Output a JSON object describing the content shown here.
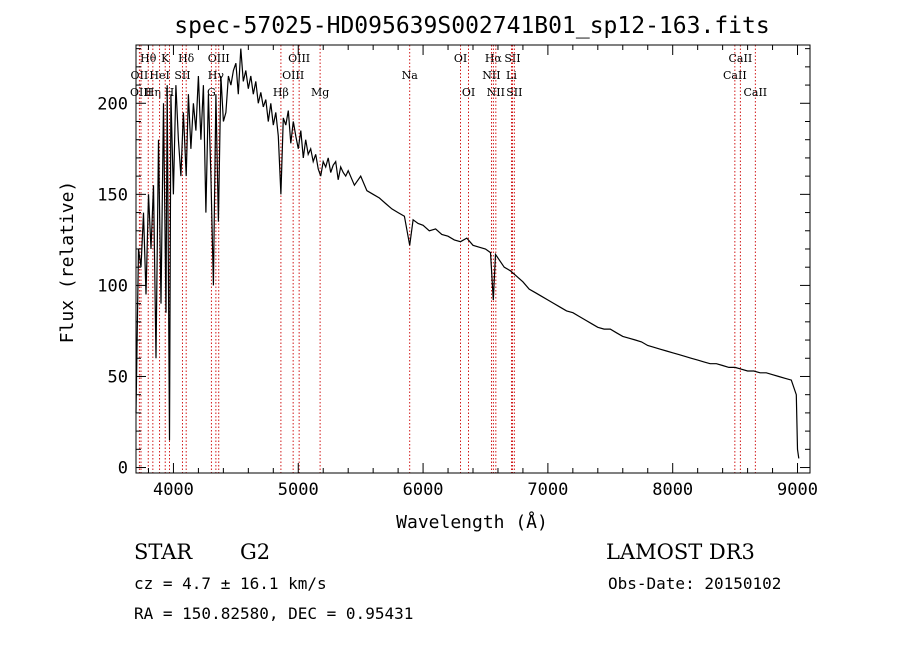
{
  "chart_data": {
    "type": "line",
    "title": "spec-57025-HD095639S002741B01_sp12-163.fits",
    "xlabel": "Wavelength (Å)",
    "ylabel": "Flux (relative)",
    "xlim": [
      3700,
      9100
    ],
    "ylim": [
      -3,
      232
    ],
    "x_ticks": [
      4000,
      5000,
      6000,
      7000,
      8000,
      9000
    ],
    "x_tick_labels": [
      "4000",
      "5000",
      "6000",
      "7000",
      "8000",
      "9000"
    ],
    "y_ticks": [
      0,
      50,
      100,
      150,
      200
    ],
    "y_tick_labels": [
      "0",
      "50",
      "100",
      "150",
      "200"
    ],
    "series": [
      {
        "name": "spectrum",
        "x": [
          3700,
          3720,
          3740,
          3760,
          3780,
          3800,
          3820,
          3840,
          3860,
          3880,
          3900,
          3920,
          3940,
          3950,
          3968,
          3980,
          4000,
          4020,
          4040,
          4060,
          4080,
          4102,
          4120,
          4140,
          4160,
          4180,
          4200,
          4220,
          4240,
          4260,
          4280,
          4300,
          4320,
          4340,
          4360,
          4380,
          4400,
          4420,
          4440,
          4460,
          4480,
          4500,
          4520,
          4540,
          4560,
          4580,
          4600,
          4620,
          4640,
          4660,
          4680,
          4700,
          4720,
          4740,
          4760,
          4780,
          4800,
          4820,
          4840,
          4861,
          4880,
          4900,
          4920,
          4940,
          4960,
          4980,
          5000,
          5020,
          5040,
          5060,
          5080,
          5100,
          5120,
          5140,
          5160,
          5180,
          5200,
          5220,
          5240,
          5260,
          5280,
          5300,
          5320,
          5340,
          5360,
          5380,
          5400,
          5450,
          5500,
          5550,
          5600,
          5650,
          5700,
          5750,
          5800,
          5850,
          5893,
          5920,
          5960,
          6000,
          6050,
          6100,
          6150,
          6200,
          6250,
          6300,
          6350,
          6400,
          6450,
          6500,
          6540,
          6563,
          6580,
          6600,
          6650,
          6700,
          6750,
          6800,
          6850,
          6900,
          6950,
          7000,
          7050,
          7100,
          7150,
          7200,
          7250,
          7300,
          7350,
          7400,
          7450,
          7500,
          7550,
          7600,
          7650,
          7700,
          7750,
          7800,
          7850,
          7900,
          7950,
          8000,
          8050,
          8100,
          8150,
          8200,
          8250,
          8300,
          8350,
          8400,
          8450,
          8500,
          8550,
          8600,
          8650,
          8700,
          8750,
          8800,
          8850,
          8900,
          8950,
          8990,
          9000,
          9010
        ],
        "y": [
          30,
          120,
          110,
          140,
          95,
          150,
          120,
          155,
          60,
          180,
          90,
          200,
          85,
          210,
          15,
          205,
          150,
          210,
          180,
          160,
          195,
          160,
          205,
          175,
          200,
          185,
          215,
          180,
          210,
          140,
          205,
          160,
          100,
          205,
          135,
          215,
          190,
          195,
          215,
          210,
          218,
          222,
          205,
          230,
          212,
          218,
          208,
          215,
          205,
          212,
          200,
          206,
          198,
          202,
          190,
          200,
          188,
          195,
          182,
          150,
          192,
          188,
          196,
          178,
          190,
          182,
          175,
          185,
          170,
          180,
          172,
          175,
          168,
          172,
          164,
          160,
          168,
          165,
          170,
          162,
          166,
          168,
          158,
          165,
          162,
          160,
          163,
          155,
          160,
          152,
          150,
          148,
          145,
          142,
          140,
          138,
          122,
          136,
          134,
          133,
          130,
          131,
          128,
          127,
          125,
          124,
          126,
          122,
          121,
          120,
          118,
          92,
          117,
          115,
          110,
          108,
          105,
          102,
          98,
          96,
          94,
          92,
          90,
          88,
          86,
          85,
          83,
          81,
          79,
          77,
          76,
          76,
          74,
          72,
          71,
          70,
          69,
          67,
          66,
          65,
          64,
          63,
          62,
          61,
          60,
          59,
          58,
          57,
          57,
          56,
          55,
          55,
          54,
          53,
          53,
          52,
          52,
          51,
          50,
          49,
          48,
          40,
          10,
          5
        ]
      }
    ],
    "lines": [
      {
        "label": "Hθ",
        "x": 3798,
        "row": 0
      },
      {
        "label": "OII",
        "x": 3727,
        "row": 1
      },
      {
        "label": "OIII",
        "x": 3740,
        "row": 2
      },
      {
        "label": "Hη",
        "x": 3835,
        "row": 2
      },
      {
        "label": "K",
        "x": 3934,
        "row": 0
      },
      {
        "label": "HeI",
        "x": 3889,
        "row": 1
      },
      {
        "label": "H",
        "x": 3968,
        "row": 2
      },
      {
        "label": "Hδ",
        "x": 4102,
        "row": 0
      },
      {
        "label": "SII",
        "x": 4072,
        "row": 1
      },
      {
        "label": "OIII",
        "x": 4363,
        "row": 0
      },
      {
        "label": "Hγ",
        "x": 4340,
        "row": 1
      },
      {
        "label": "G",
        "x": 4304,
        "row": 2
      },
      {
        "label": "OIII",
        "x": 5007,
        "row": 0
      },
      {
        "label": "OIII",
        "x": 4959,
        "row": 1
      },
      {
        "label": "Hβ",
        "x": 4861,
        "row": 2
      },
      {
        "label": "Mg",
        "x": 5175,
        "row": 2
      },
      {
        "label": "Na",
        "x": 5893,
        "row": 1
      },
      {
        "label": "OI",
        "x": 6300,
        "row": 0
      },
      {
        "label": "OI",
        "x": 6364,
        "row": 2
      },
      {
        "label": "Hα",
        "x": 6563,
        "row": 0
      },
      {
        "label": "NII",
        "x": 6548,
        "row": 1
      },
      {
        "label": "NII",
        "x": 6583,
        "row": 2
      },
      {
        "label": "SII",
        "x": 6716,
        "row": 0
      },
      {
        "label": "Li",
        "x": 6708,
        "row": 1
      },
      {
        "label": "SII",
        "x": 6731,
        "row": 2
      },
      {
        "label": "CaII",
        "x": 8542,
        "row": 0
      },
      {
        "label": "CaII",
        "x": 8498,
        "row": 1
      },
      {
        "label": "CaII",
        "x": 8662,
        "row": 2
      }
    ]
  },
  "info": {
    "class_label": "STAR",
    "subclass": "G2",
    "survey": "LAMOST DR3",
    "cz": "cz = 4.7 ± 16.1 km/s",
    "obs_date": "Obs-Date: 20150102",
    "coords": "RA = 150.82580, DEC =    0.95431"
  },
  "colors": {
    "spectrum": "#000000",
    "line_marker": "#cc0000",
    "text": "#000000"
  }
}
